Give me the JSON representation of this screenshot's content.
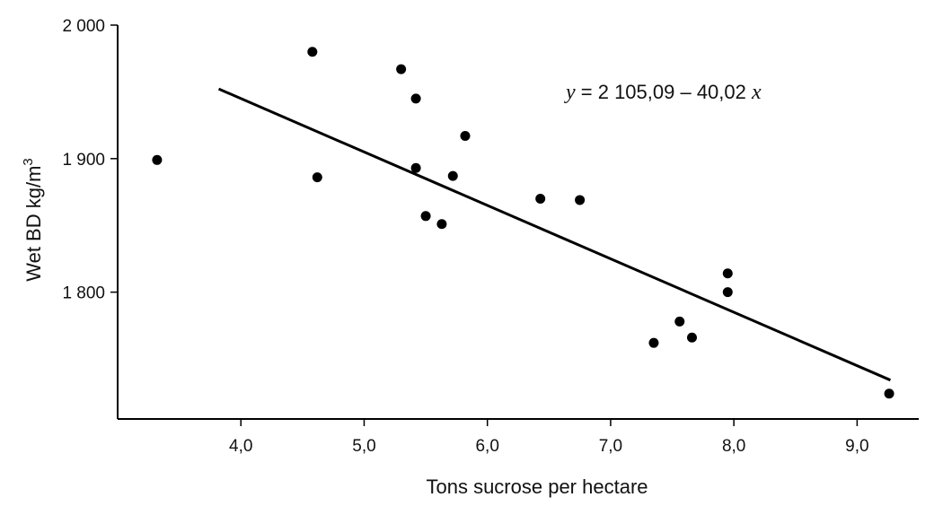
{
  "chart_data": {
    "type": "scatter",
    "xlabel": "Tons sucrose per hectare",
    "ylabel_main": "Wet BD  kg/m",
    "ylabel_sup": "3",
    "xlim": [
      3.0,
      9.5
    ],
    "ylim": [
      1705,
      2000
    ],
    "x_ticks": [
      4.0,
      5.0,
      6.0,
      7.0,
      8.0,
      9.0
    ],
    "x_tick_labels": [
      "4,0",
      "5,0",
      "6,0",
      "7,0",
      "8,0",
      "9,0"
    ],
    "y_ticks": [
      1800,
      1900,
      2000
    ],
    "y_tick_labels": [
      "1 800",
      "1 900",
      "2 000"
    ],
    "equation": {
      "y_var": "y",
      "middle": " = 2 105,09 – 40,02 ",
      "x_var": "x"
    },
    "regression": {
      "intercept": 2105.09,
      "slope": -40.02,
      "x_range": [
        3.82,
        9.27
      ]
    },
    "points": [
      {
        "x": 3.32,
        "y": 1899
      },
      {
        "x": 4.58,
        "y": 1980
      },
      {
        "x": 4.62,
        "y": 1886
      },
      {
        "x": 5.3,
        "y": 1967
      },
      {
        "x": 5.42,
        "y": 1945
      },
      {
        "x": 5.42,
        "y": 1893
      },
      {
        "x": 5.5,
        "y": 1857
      },
      {
        "x": 5.63,
        "y": 1851
      },
      {
        "x": 5.72,
        "y": 1887
      },
      {
        "x": 5.82,
        "y": 1917
      },
      {
        "x": 6.43,
        "y": 1870
      },
      {
        "x": 6.75,
        "y": 1869
      },
      {
        "x": 7.35,
        "y": 1762
      },
      {
        "x": 7.56,
        "y": 1778
      },
      {
        "x": 7.66,
        "y": 1766
      },
      {
        "x": 7.95,
        "y": 1814
      },
      {
        "x": 7.95,
        "y": 1800
      },
      {
        "x": 9.26,
        "y": 1724
      }
    ]
  }
}
